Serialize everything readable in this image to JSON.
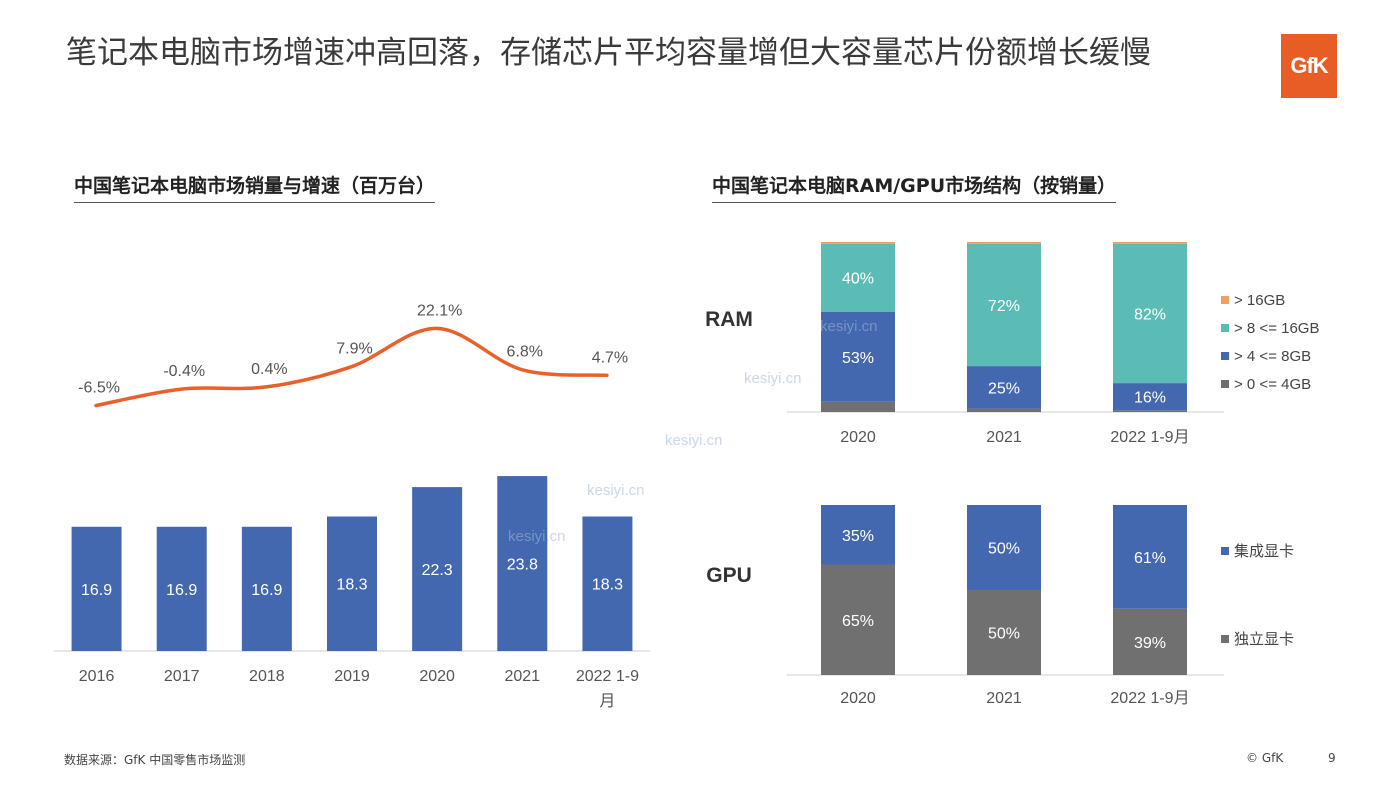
{
  "header": {
    "title": "笔记本电脑市场增速冲高回落，存储芯片平均容量增但大容量芯片份额增长缓慢",
    "logo": "GfK",
    "accent": "#e85d26"
  },
  "left_chart_title": "中国笔记本电脑市场销量与增速（百万台）",
  "right_chart_title": "中国笔记本电脑RAM/GPU市场结构（按销量）",
  "row_labels": {
    "ram": "RAM",
    "gpu": "GPU"
  },
  "watermark": "kesiyi.cn",
  "footer": {
    "source": "数据来源：GfK 中国零售市场监测",
    "copyright": "© GfK",
    "page": "9"
  },
  "chart_data": [
    {
      "type": "bar",
      "categories": [
        "2016",
        "2017",
        "2018",
        "2019",
        "2020",
        "2021",
        "2022 1-9月"
      ],
      "series": [
        {
          "values": [
            16.9,
            16.9,
            16.9,
            18.3,
            22.3,
            23.8,
            18.3
          ],
          "color": "#4468b0"
        }
      ],
      "line": {
        "values": [
          -6.5,
          -0.4,
          0.4,
          7.9,
          22.1,
          6.8,
          4.7
        ],
        "labels": [
          "-6.5%",
          "-0.4%",
          "0.4%",
          "7.9%",
          "22.1%",
          "6.8%",
          "4.7%"
        ],
        "color": "#e8602a"
      }
    },
    {
      "type": "bar",
      "stacked": true,
      "categories": [
        "2020",
        "2021",
        "2022 1-9月"
      ],
      "series": [
        {
          "name": "> 0 <= 4GB",
          "values": [
            6,
            2,
            1
          ],
          "color": "#707070"
        },
        {
          "name": "> 4 <= 8GB",
          "values": [
            53,
            25,
            16
          ],
          "labels": [
            "53%",
            "25%",
            "16%"
          ],
          "color": "#4468b0"
        },
        {
          "name": "> 8 <= 16GB",
          "values": [
            40,
            72,
            82
          ],
          "labels": [
            "40%",
            "72%",
            "82%"
          ],
          "color": "#5bbcb6"
        },
        {
          "name": "> 16GB",
          "values": [
            1,
            1,
            1
          ],
          "color": "#f0a05a"
        }
      ]
    },
    {
      "type": "bar",
      "stacked": true,
      "categories": [
        "2020",
        "2021",
        "2022 1-9月"
      ],
      "series": [
        {
          "name": "独立显卡",
          "values": [
            65,
            50,
            39
          ],
          "labels": [
            "65%",
            "50%",
            "39%"
          ],
          "color": "#707070"
        },
        {
          "name": "集成显卡",
          "values": [
            35,
            50,
            61
          ],
          "labels": [
            "35%",
            "50%",
            "61%"
          ],
          "color": "#4468b0"
        }
      ]
    }
  ]
}
